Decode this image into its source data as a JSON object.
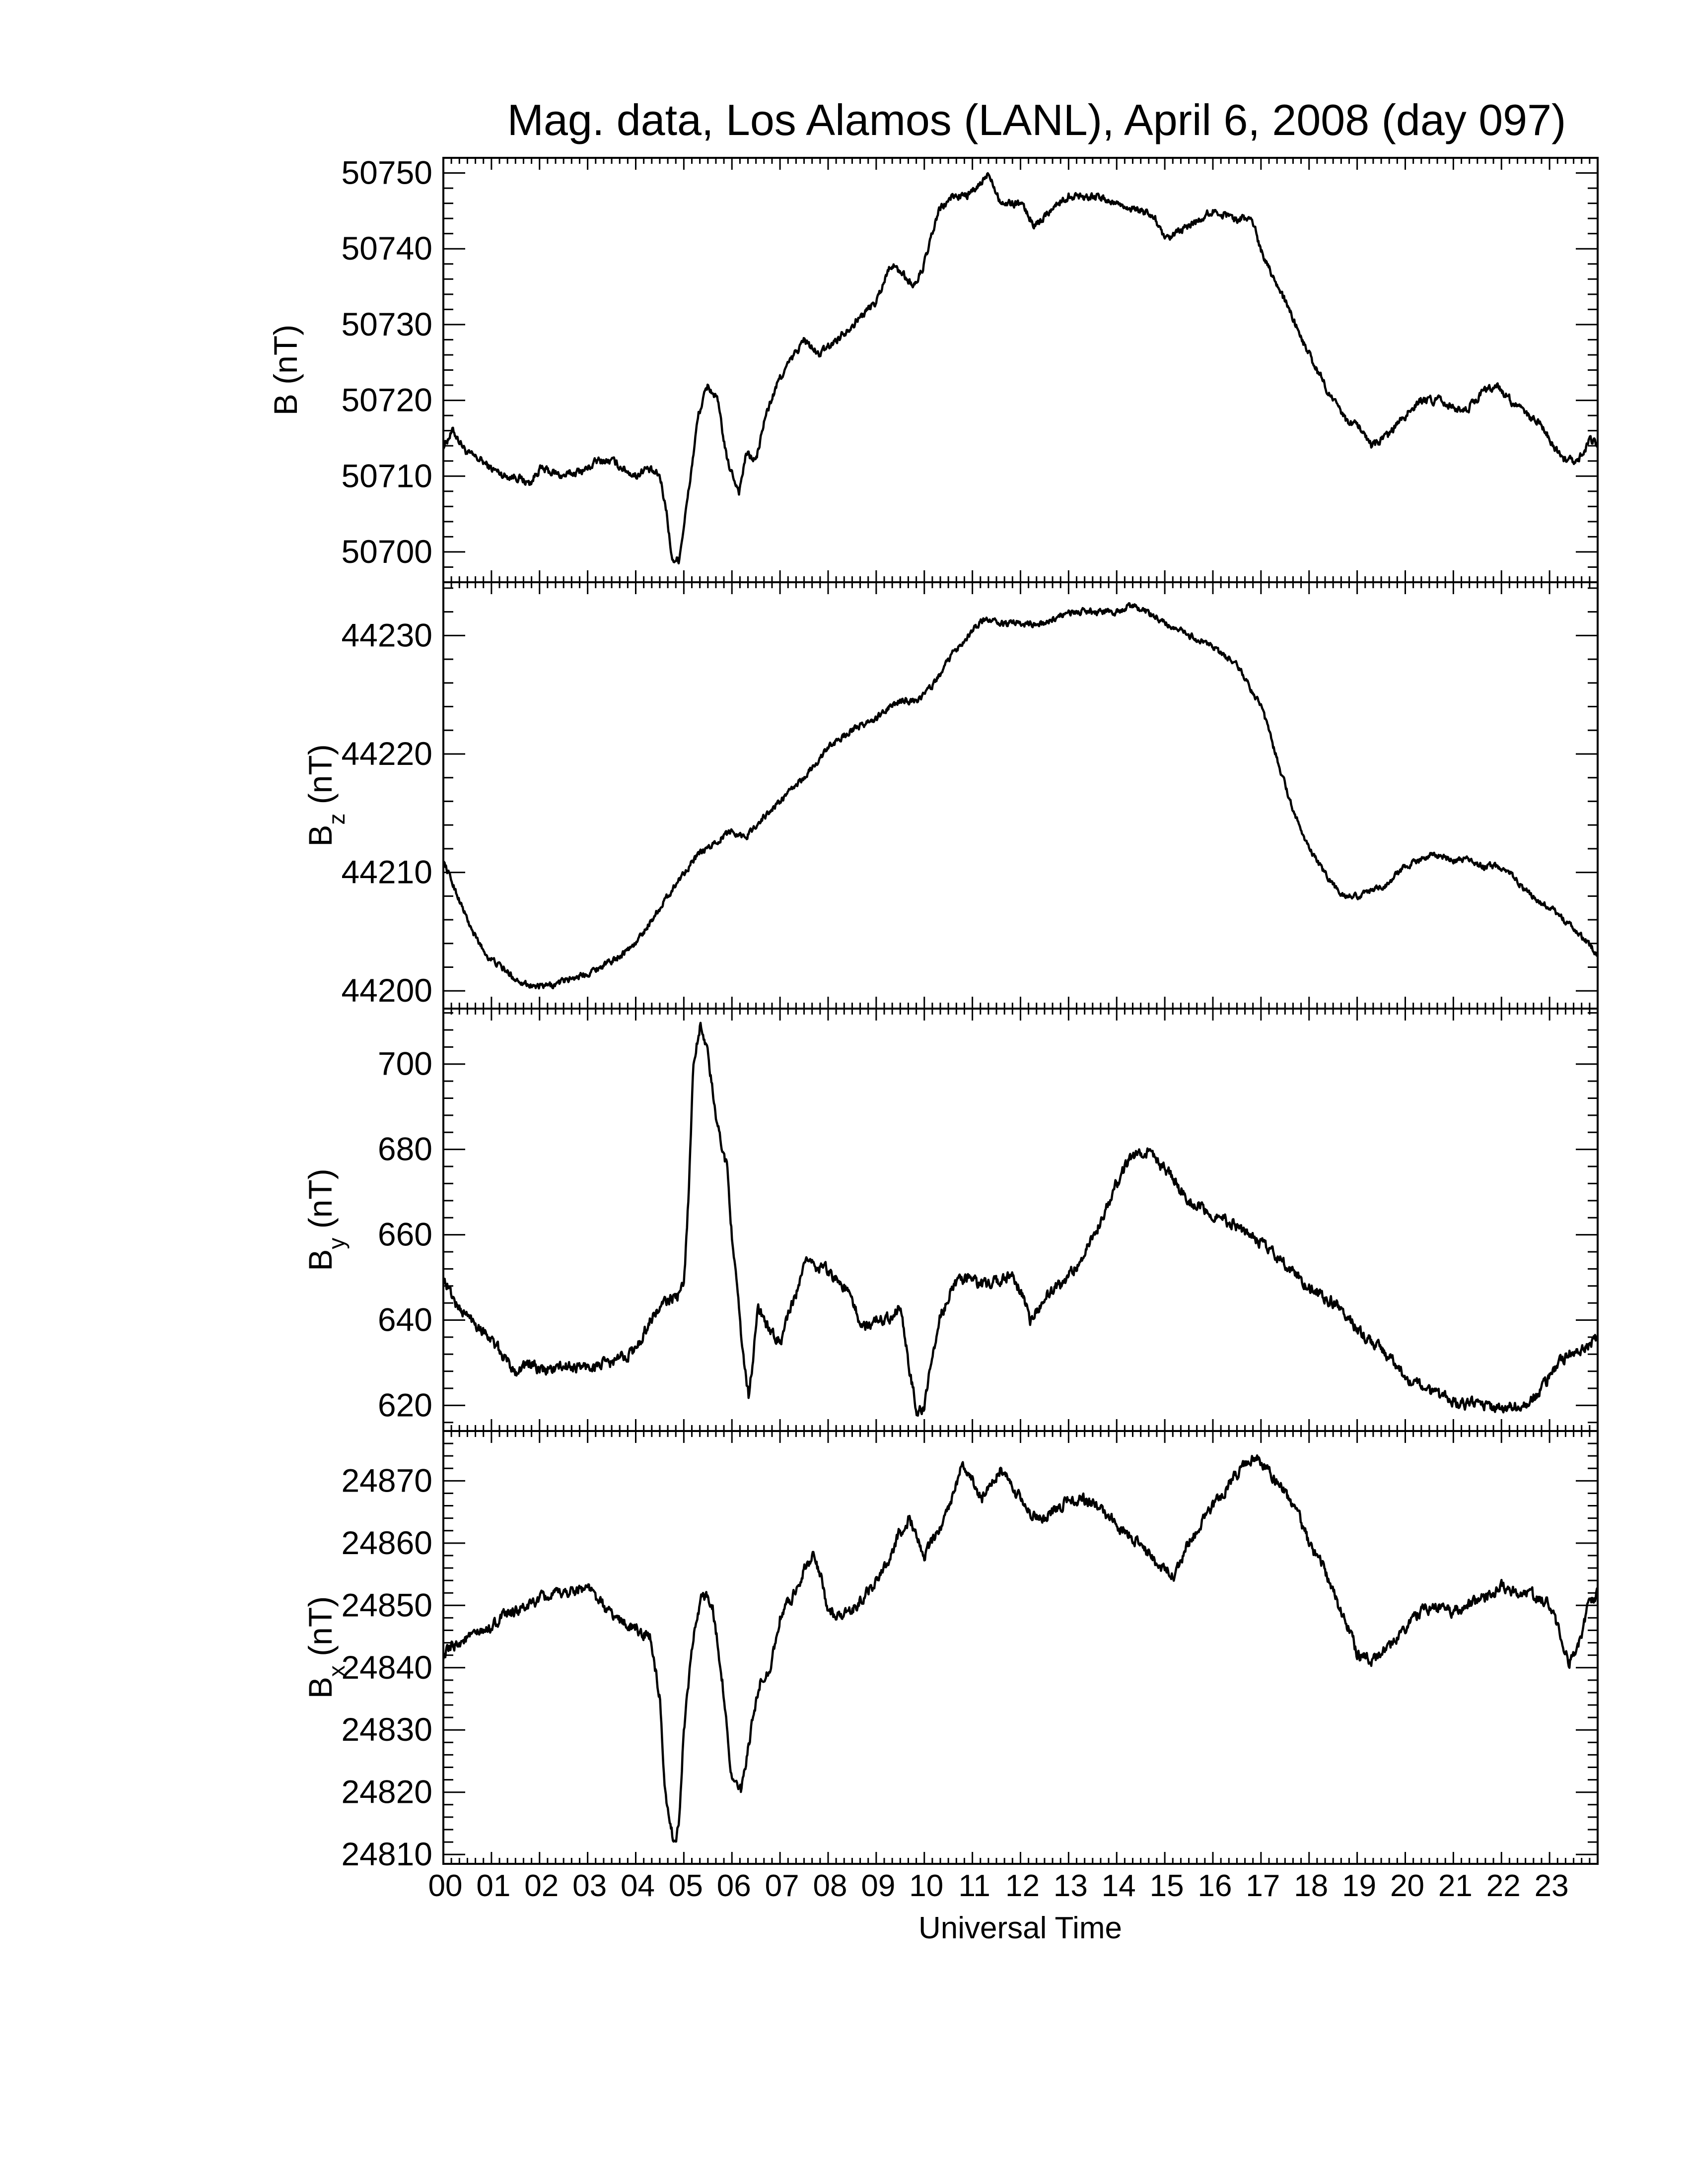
{
  "chart_data": {
    "type": "line",
    "title": "Mag. data, Los Alamos (LANL), April 6, 2008 (day 097)",
    "xlabel": "Universal Time",
    "xlim": [
      0,
      24
    ],
    "x_tick_labels": [
      "00",
      "01",
      "02",
      "03",
      "04",
      "05",
      "06",
      "07",
      "08",
      "09",
      "10",
      "11",
      "12",
      "13",
      "14",
      "15",
      "16",
      "17",
      "18",
      "19",
      "20",
      "21",
      "22",
      "23"
    ],
    "line_color": "#000000",
    "panels": [
      {
        "id": "B",
        "ylabel_main": "B",
        "ylabel_sub": "",
        "ylabel_unit": " (nT)",
        "ylim": [
          50696,
          50752
        ],
        "yticks": [
          50700,
          50710,
          50720,
          50730,
          50740,
          50750
        ],
        "noise": 0.35,
        "series": [
          {
            "x": [
              0,
              0.2,
              0.5,
              0.8,
              1.0,
              1.3,
              1.5,
              1.8,
              2.0,
              2.5,
              3.0,
              3.2,
              3.5,
              4.0,
              4.2,
              4.5,
              4.65,
              4.75,
              4.9,
              5.1,
              5.3,
              5.5,
              5.7,
              5.9,
              6.15,
              6.3,
              6.5,
              6.7,
              7.0,
              7.3,
              7.5,
              7.8,
              8.0,
              8.5,
              9.0,
              9.3,
              9.5,
              9.8,
              10.0,
              10.3,
              10.6,
              10.9,
              11.1,
              11.35,
              11.6,
              12.0,
              12.3,
              12.6,
              13.0,
              13.5,
              14.0,
              14.5,
              14.8,
              15.0,
              15.5,
              16.0,
              16.5,
              16.8,
              17.0,
              17.5,
              18.0,
              18.5,
              18.8,
              19.0,
              19.3,
              19.6,
              20.0,
              20.3,
              20.7,
              21.0,
              21.3,
              21.6,
              21.9,
              22.2,
              22.5,
              22.8,
              23.0,
              23.3,
              23.6,
              23.85,
              24
            ],
            "y": [
              50714,
              50716,
              50713,
              50712,
              50711,
              50710,
              50710,
              50709,
              50711,
              50710,
              50711,
              50712,
              50712,
              50710,
              50711,
              50710,
              50705,
              50699,
              50699,
              50708,
              50718,
              50722,
              50720,
              50712,
              50708,
              50713,
              50712,
              50718,
              50723,
              50726,
              50728,
              50726,
              50727,
              50730,
              50733,
              50738,
              50737,
              50735,
              50738,
              50745,
              50747,
              50747,
              50748,
              50750,
              50746,
              50746,
              50743,
              50745,
              50747,
              50747,
              50746,
              50745,
              50744,
              50741,
              50743,
              50745,
              50744,
              50744,
              50740,
              50733,
              50726,
              50720,
              50717,
              50717,
              50714,
              50715,
              50718,
              50720,
              50720,
              50719,
              50719,
              50721,
              50722,
              50720,
              50718,
              50717,
              50715,
              50712,
              50712,
              50715,
              50714
            ]
          }
        ]
      },
      {
        "id": "Bz",
        "ylabel_main": "B",
        "ylabel_sub": "z",
        "ylabel_unit": " (nT)",
        "ylim": [
          44198.5,
          44234.5
        ],
        "yticks": [
          44200,
          44210,
          44220,
          44230
        ],
        "noise": 0.18,
        "series": [
          {
            "x": [
              0,
              0.3,
              0.6,
              0.9,
              1.2,
              1.5,
              1.8,
              2.0,
              2.3,
              2.6,
              3.0,
              3.5,
              4.0,
              4.5,
              5.0,
              5.3,
              5.5,
              5.8,
              6.0,
              6.3,
              6.5,
              7.0,
              7.5,
              8.0,
              8.3,
              8.5,
              9.0,
              9.3,
              9.5,
              9.8,
              10.0,
              10.3,
              10.6,
              11.0,
              11.3,
              11.6,
              12.0,
              12.5,
              13.0,
              13.5,
              14.0,
              14.3,
              14.6,
              15.0,
              15.5,
              16.0,
              16.5,
              17.0,
              17.3,
              17.6,
              18.0,
              18.3,
              18.6,
              18.8,
              19.0,
              19.3,
              19.6,
              20.0,
              20.3,
              20.6,
              21.0,
              21.3,
              21.6,
              22.0,
              22.3,
              22.6,
              23.0,
              23.3,
              23.6,
              24
            ],
            "y": [
              44211,
              44208,
              44205,
              44203,
              44202,
              44201,
              44200.5,
              44200.3,
              44200.5,
              44201,
              44201.5,
              44202.5,
              44204,
              44207,
              44210,
              44211.5,
              44212,
              44213,
              44213.5,
              44213,
              44214,
              44216,
              44218,
              44220.5,
              44221.5,
              44222,
              44223,
              44224,
              44224.5,
              44224.5,
              44225,
              44226.5,
              44228.5,
              44230.5,
              44231.5,
              44231,
              44231,
              44231,
              44232,
              44232,
              44232,
              44232.5,
              44232,
              44231,
              44230,
              44229,
              44227.5,
              44224,
              44220,
              44216,
              44212,
              44210,
              44208.5,
              44208,
              44208,
              44208.5,
              44209,
              44210.5,
              44211,
              44211.5,
              44211,
              44211,
              44210.5,
              44210.5,
              44209.5,
              44208,
              44207,
              44206,
              44205,
              44203
            ]
          }
        ]
      },
      {
        "id": "By",
        "ylabel_main": "B",
        "ylabel_sub": "y",
        "ylabel_unit": " (nT)",
        "ylim": [
          614,
          713
        ],
        "yticks": [
          620,
          640,
          660,
          680,
          700
        ],
        "noise": 0.9,
        "series": [
          {
            "x": [
              0,
              0.3,
              0.6,
              0.9,
              1.2,
              1.5,
              1.8,
              2.0,
              2.5,
              3.0,
              3.5,
              4.0,
              4.3,
              4.6,
              4.9,
              5.0,
              5.1,
              5.2,
              5.35,
              5.5,
              5.7,
              5.9,
              6.0,
              6.2,
              6.35,
              6.55,
              6.8,
              7.0,
              7.3,
              7.6,
              7.8,
              8.0,
              8.3,
              8.5,
              8.7,
              9.0,
              9.3,
              9.5,
              9.7,
              9.85,
              10.0,
              10.3,
              10.6,
              10.9,
              11.2,
              11.5,
              11.8,
              12.0,
              12.2,
              12.5,
              12.8,
              13.0,
              13.3,
              13.6,
              14.0,
              14.3,
              14.6,
              14.9,
              15.2,
              15.5,
              16.0,
              16.5,
              17.0,
              17.5,
              18.0,
              18.5,
              19.0,
              19.5,
              20.0,
              20.5,
              21.0,
              21.5,
              22.0,
              22.3,
              22.6,
              22.9,
              23.2,
              23.5,
              23.8,
              24
            ],
            "y": [
              650,
              643,
              640,
              637,
              632,
              628,
              630,
              628,
              629,
              629,
              630,
              633,
              640,
              644,
              646,
              648,
              670,
              700,
              710,
              702,
              685,
              676,
              660,
              635,
              622,
              643,
              637,
              635,
              645,
              655,
              652,
              652,
              648,
              645,
              638,
              640,
              641,
              643,
              628,
              618,
              620,
              640,
              648,
              650,
              648,
              649,
              651,
              647,
              640,
              645,
              648,
              650,
              655,
              662,
              672,
              678,
              680,
              676,
              673,
              668,
              665,
              662,
              658,
              653,
              648,
              644,
              638,
              633,
              627,
              623,
              621,
              620,
              619,
              620,
              621,
              625,
              630,
              633,
              634,
              636
            ]
          }
        ]
      },
      {
        "id": "Bx",
        "ylabel_main": "B",
        "ylabel_sub": "x",
        "ylabel_unit": " (nT)",
        "ylim": [
          24808.5,
          24878
        ],
        "yticks": [
          24810,
          24820,
          24830,
          24840,
          24850,
          24860,
          24870
        ],
        "noise": 0.6,
        "series": [
          {
            "x": [
              0,
              0.3,
              0.6,
              0.9,
              1.2,
              1.5,
              1.8,
              2.0,
              2.5,
              3.0,
              3.3,
              3.6,
              3.8,
              4.0,
              4.3,
              4.5,
              4.6,
              4.7,
              4.8,
              4.9,
              5.0,
              5.2,
              5.4,
              5.6,
              5.8,
              6.0,
              6.2,
              6.4,
              6.6,
              6.8,
              7.0,
              7.3,
              7.5,
              7.7,
              7.9,
              8.0,
              8.3,
              8.6,
              9.0,
              9.3,
              9.5,
              9.7,
              10.0,
              10.3,
              10.6,
              10.8,
              11.0,
              11.2,
              11.4,
              11.6,
              11.9,
              12.2,
              12.5,
              12.8,
              13.0,
              13.3,
              13.6,
              14.0,
              14.3,
              14.6,
              14.9,
              15.2,
              15.5,
              16.0,
              16.3,
              16.6,
              16.9,
              17.2,
              17.5,
              17.8,
              18.0,
              18.3,
              18.6,
              18.9,
              19.0,
              19.3,
              19.6,
              20.0,
              20.3,
              20.6,
              21.0,
              21.3,
              21.6,
              22.0,
              22.3,
              22.6,
              23.0,
              23.2,
              23.4,
              23.6,
              23.8,
              24
            ],
            "y": [
              24842,
              24844,
              24845,
              24846,
              24848,
              24849,
              24850,
              24851,
              24852,
              24853,
              24850,
              24848,
              24847,
              24846,
              24845,
              24835,
              24820,
              24815,
              24812,
              24815,
              24830,
              24845,
              24852,
              24850,
              24838,
              24822,
              24820,
              24830,
              24838,
              24840,
              24848,
              24852,
              24856,
              24858,
              24853,
              24849,
              24848,
              24850,
              24854,
              24858,
              24862,
              24864,
              24858,
              24862,
              24868,
              24873,
              24870,
              24867,
              24870,
              24872,
              24868,
              24865,
              24864,
              24866,
              24867,
              24867,
              24866,
              24863,
              24861,
              24859,
              24856,
              24855,
              24860,
              24866,
              24869,
              24872,
              24874,
              24871,
              24868,
              24864,
              24860,
              24856,
              24850,
              24845,
              24842,
              24841,
              24843,
              24846,
              24849,
              24850,
              24849,
              24850,
              24851,
              24853,
              24852,
              24852,
              24850,
              24846,
              24841,
              24843,
              24850,
              24852
            ]
          }
        ]
      }
    ]
  }
}
